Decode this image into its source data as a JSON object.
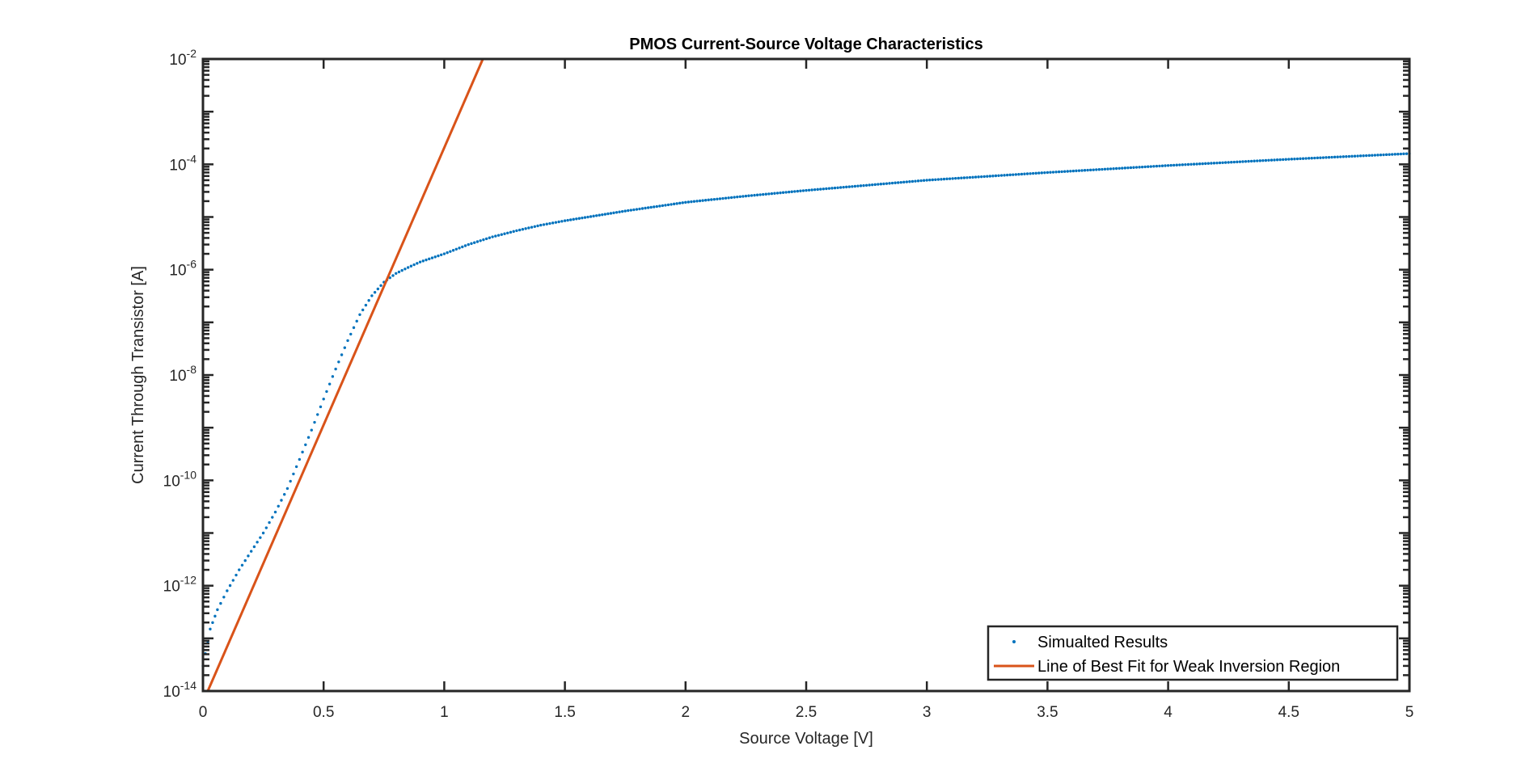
{
  "chart_data": {
    "type": "scatter",
    "title": "PMOS Current-Source Voltage Characteristics",
    "xlabel": "Source Voltage [V]",
    "ylabel": "Current Through Transistor [A]",
    "xlim": [
      0,
      5
    ],
    "ylim": [
      1e-14,
      0.01
    ],
    "yscale": "log",
    "grid": false,
    "legend_location": "bottom-right",
    "x_ticks": [
      "0",
      "0.5",
      "1",
      "1.5",
      "2",
      "2.5",
      "3",
      "3.5",
      "4",
      "4.5",
      "5"
    ],
    "y_ticks": [
      {
        "base": "10",
        "exp": "-14"
      },
      {
        "base": "10",
        "exp": "-12"
      },
      {
        "base": "10",
        "exp": "-10"
      },
      {
        "base": "10",
        "exp": "-8"
      },
      {
        "base": "10",
        "exp": "-6"
      },
      {
        "base": "10",
        "exp": "-4"
      },
      {
        "base": "10",
        "exp": "-2"
      }
    ],
    "series": [
      {
        "name": "Simualted Results",
        "style": "dots",
        "color": "#0072BD",
        "x": [
          0.0,
          0.03,
          0.06,
          0.1,
          0.15,
          0.2,
          0.25,
          0.3,
          0.35,
          0.4,
          0.45,
          0.5,
          0.55,
          0.6,
          0.65,
          0.7,
          0.75,
          0.8,
          0.85,
          0.9,
          1.0,
          1.1,
          1.2,
          1.3,
          1.4,
          1.5,
          1.75,
          2.0,
          2.25,
          2.5,
          2.75,
          3.0,
          3.5,
          4.0,
          4.5,
          5.0
        ],
        "y": [
          3e-14,
          1.5e-13,
          3.5e-13,
          8e-13,
          2e-12,
          4.5e-12,
          1e-11,
          2.5e-11,
          7e-11,
          2.5e-10,
          9e-10,
          3.5e-09,
          1.3e-08,
          4.5e-08,
          1.4e-07,
          3.2e-07,
          5.8e-07,
          8.5e-07,
          1.1e-06,
          1.4e-06,
          2e-06,
          3e-06,
          4.2e-06,
          5.5e-06,
          7e-06,
          8.5e-06,
          1.3e-05,
          1.9e-05,
          2.5e-05,
          3.2e-05,
          4e-05,
          5e-05,
          7e-05,
          9.5e-05,
          0.000125,
          0.00016
        ]
      },
      {
        "name": "Line of Best Fit for Weak Inversion Region",
        "style": "line",
        "color": "#D95319",
        "x": [
          0.02,
          1.16
        ],
        "y": [
          1e-14,
          0.01
        ]
      }
    ]
  }
}
